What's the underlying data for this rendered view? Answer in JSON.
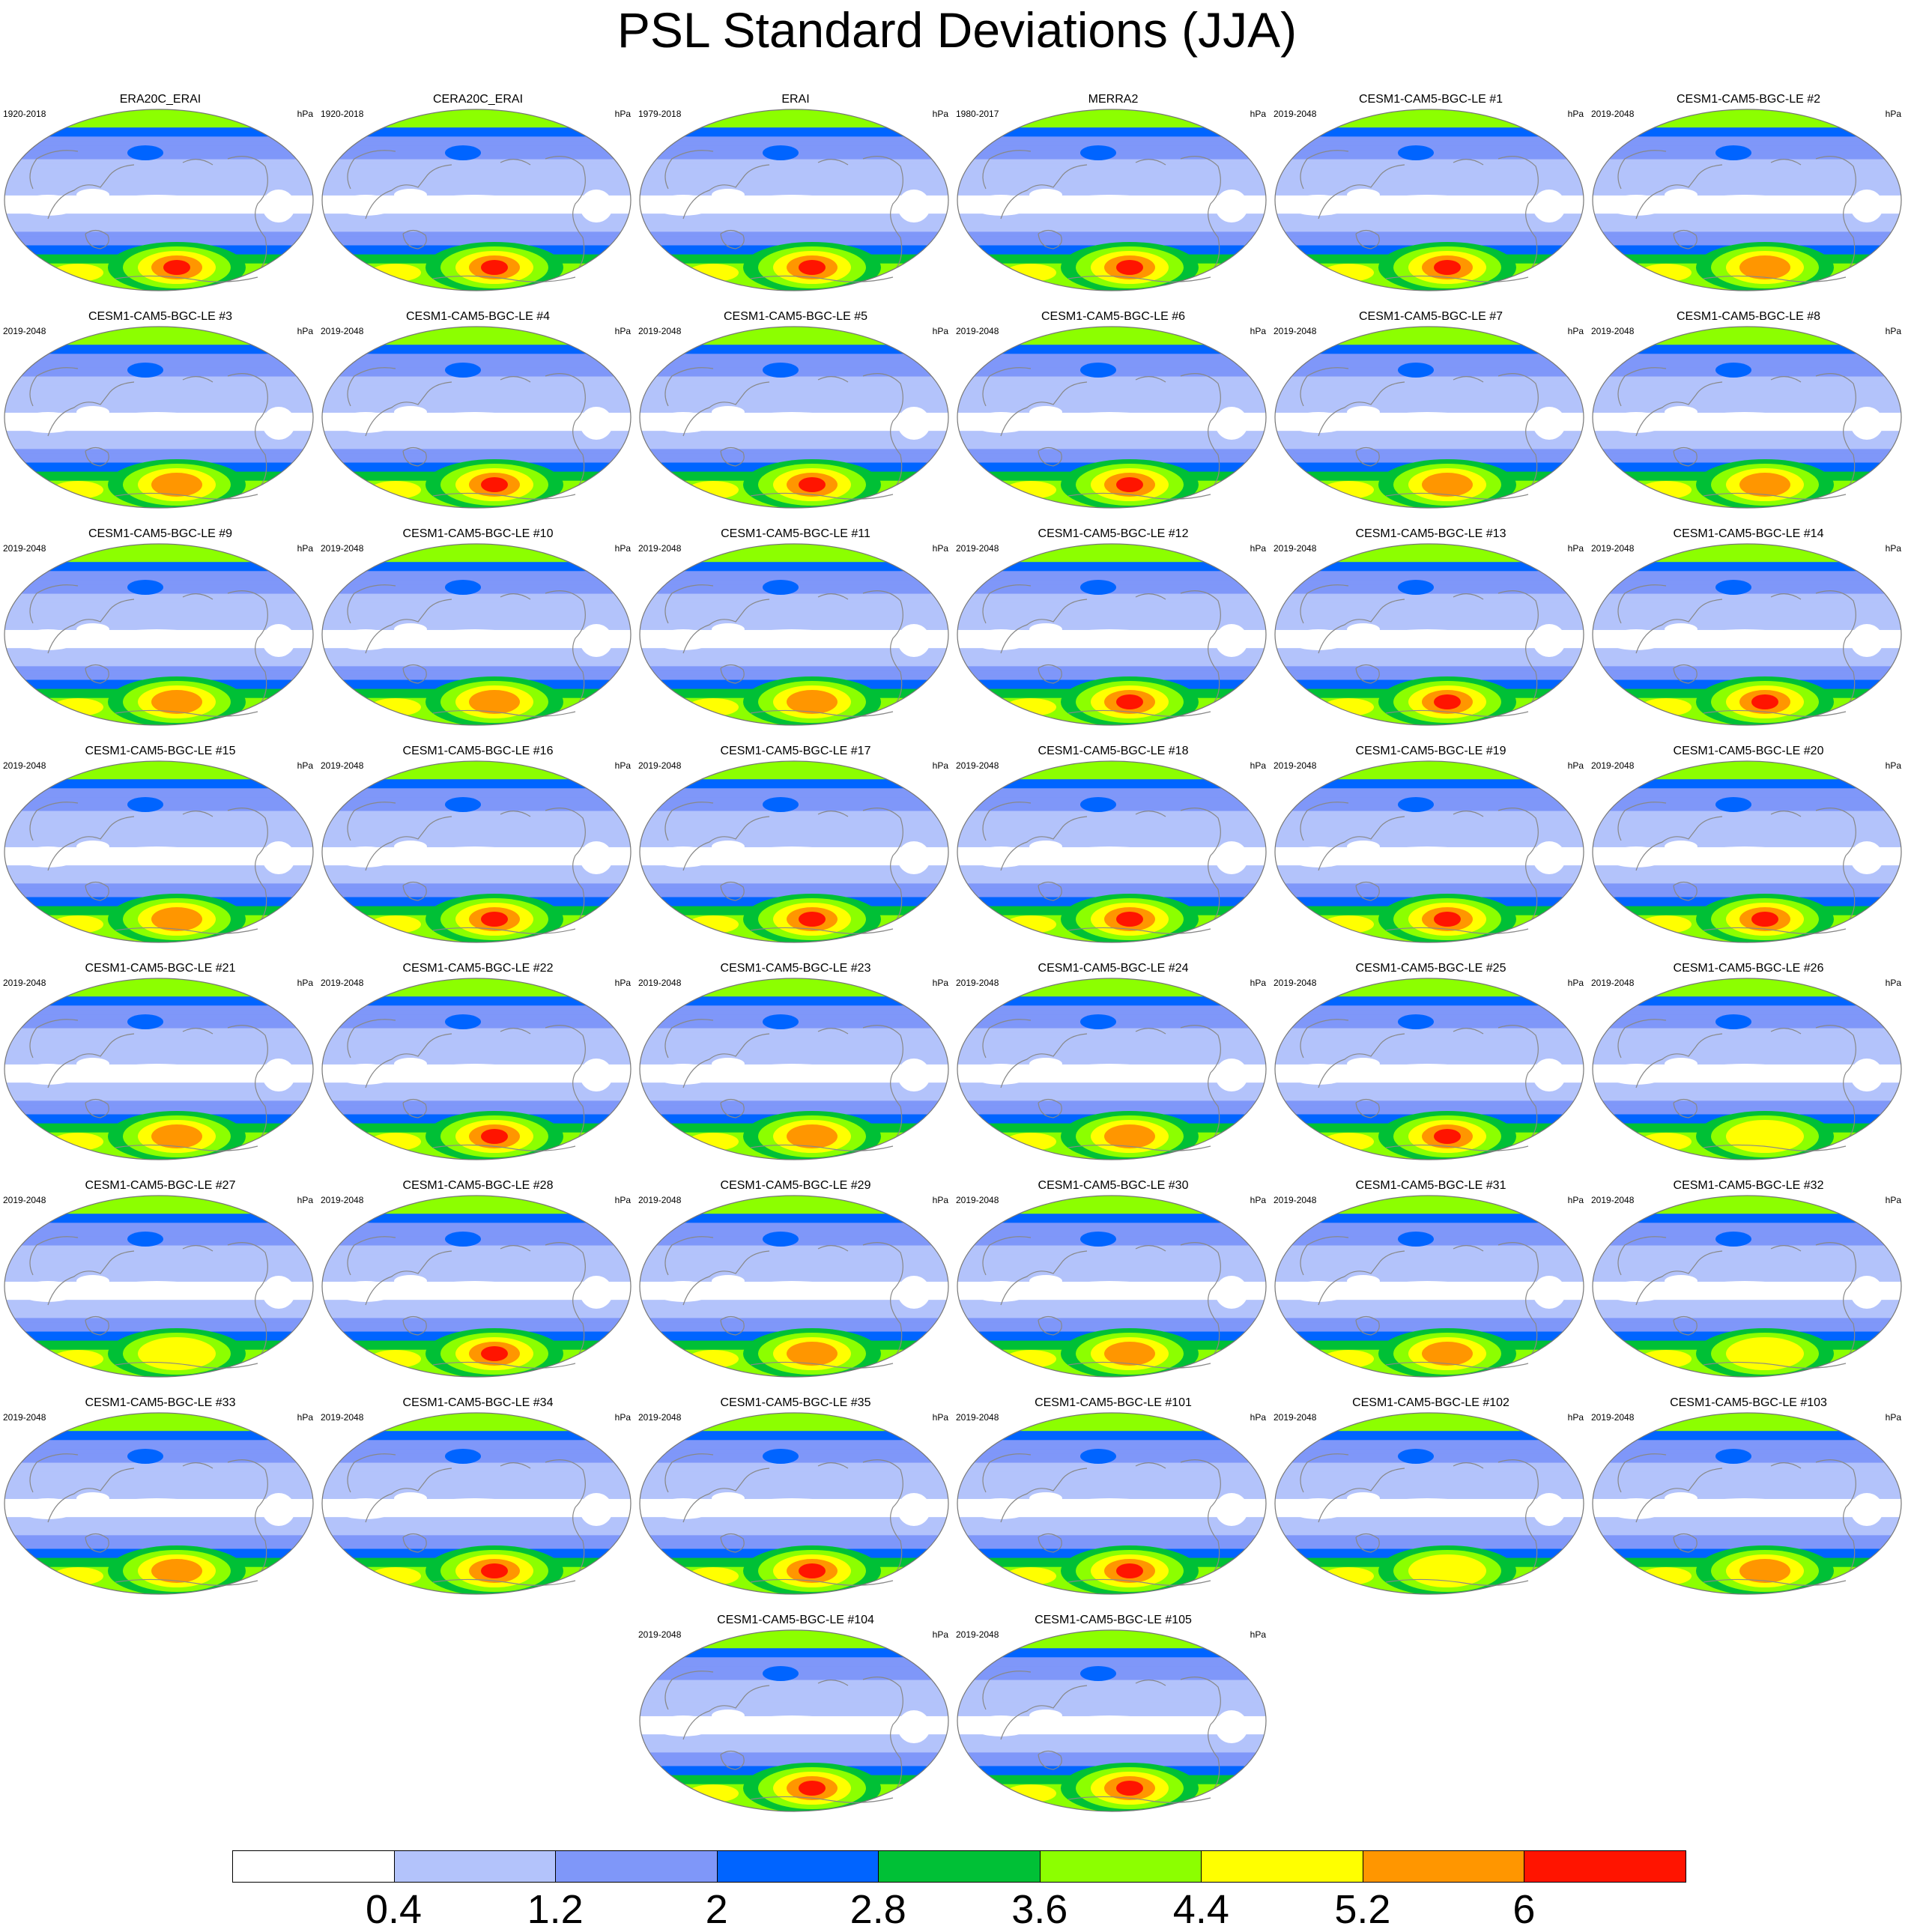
{
  "chart_data": {
    "type": "map-panel-grid",
    "title": "PSL Standard Deviations (JJA)",
    "units": "hPa",
    "colorbar": {
      "levels": [
        0.4,
        1.2,
        2,
        2.8,
        3.6,
        4.4,
        5.2,
        6
      ],
      "labels": [
        "0.4",
        "1.2",
        "2",
        "2.8",
        "3.6",
        "4.4",
        "5.2",
        "6"
      ],
      "colors": [
        "#ffffff",
        "#b3c3fb",
        "#7f97f9",
        "#0064ff",
        "#00c036",
        "#8cff00",
        "#ffff00",
        "#ff9600",
        "#ff1400"
      ]
    },
    "panels": [
      {
        "name": "ERA20C_ERAI",
        "years": "1920-2018",
        "units": "hPa",
        "peak": 6.3
      },
      {
        "name": "CERA20C_ERAI",
        "years": "1920-2018",
        "units": "hPa",
        "peak": 6.1
      },
      {
        "name": "ERAI",
        "years": "1979-2018",
        "units": "hPa",
        "peak": 6.2
      },
      {
        "name": "MERRA2",
        "years": "1980-2017",
        "units": "hPa",
        "peak": 6.2
      },
      {
        "name": "CESM1-CAM5-BGC-LE #1",
        "years": "2019-2048",
        "units": "hPa",
        "peak": 6.4
      },
      {
        "name": "CESM1-CAM5-BGC-LE #2",
        "years": "2019-2048",
        "units": "hPa",
        "peak": 5.3
      },
      {
        "name": "CESM1-CAM5-BGC-LE #3",
        "years": "2019-2048",
        "units": "hPa",
        "peak": 5.8
      },
      {
        "name": "CESM1-CAM5-BGC-LE #4",
        "years": "2019-2048",
        "units": "hPa",
        "peak": 6.4
      },
      {
        "name": "CESM1-CAM5-BGC-LE #5",
        "years": "2019-2048",
        "units": "hPa",
        "peak": 6.5
      },
      {
        "name": "CESM1-CAM5-BGC-LE #6",
        "years": "2019-2048",
        "units": "hPa",
        "peak": 6.2
      },
      {
        "name": "CESM1-CAM5-BGC-LE #7",
        "years": "2019-2048",
        "units": "hPa",
        "peak": 5.6
      },
      {
        "name": "CESM1-CAM5-BGC-LE #8",
        "years": "2019-2048",
        "units": "hPa",
        "peak": 5.7
      },
      {
        "name": "CESM1-CAM5-BGC-LE #9",
        "years": "2019-2048",
        "units": "hPa",
        "peak": 5.6
      },
      {
        "name": "CESM1-CAM5-BGC-LE #10",
        "years": "2019-2048",
        "units": "hPa",
        "peak": 5.5
      },
      {
        "name": "CESM1-CAM5-BGC-LE #11",
        "years": "2019-2048",
        "units": "hPa",
        "peak": 5.6
      },
      {
        "name": "CESM1-CAM5-BGC-LE #12",
        "years": "2019-2048",
        "units": "hPa",
        "peak": 6.5
      },
      {
        "name": "CESM1-CAM5-BGC-LE #13",
        "years": "2019-2048",
        "units": "hPa",
        "peak": 6.1
      },
      {
        "name": "CESM1-CAM5-BGC-LE #14",
        "years": "2019-2048",
        "units": "hPa",
        "peak": 6.1
      },
      {
        "name": "CESM1-CAM5-BGC-LE #15",
        "years": "2019-2048",
        "units": "hPa",
        "peak": 5.5
      },
      {
        "name": "CESM1-CAM5-BGC-LE #16",
        "years": "2019-2048",
        "units": "hPa",
        "peak": 6.5
      },
      {
        "name": "CESM1-CAM5-BGC-LE #17",
        "years": "2019-2048",
        "units": "hPa",
        "peak": 6.3
      },
      {
        "name": "CESM1-CAM5-BGC-LE #18",
        "years": "2019-2048",
        "units": "hPa",
        "peak": 6.3
      },
      {
        "name": "CESM1-CAM5-BGC-LE #19",
        "years": "2019-2048",
        "units": "hPa",
        "peak": 6.2
      },
      {
        "name": "CESM1-CAM5-BGC-LE #20",
        "years": "2019-2048",
        "units": "hPa",
        "peak": 6.2
      },
      {
        "name": "CESM1-CAM5-BGC-LE #21",
        "years": "2019-2048",
        "units": "hPa",
        "peak": 5.6
      },
      {
        "name": "CESM1-CAM5-BGC-LE #22",
        "years": "2019-2048",
        "units": "hPa",
        "peak": 6.5
      },
      {
        "name": "CESM1-CAM5-BGC-LE #23",
        "years": "2019-2048",
        "units": "hPa",
        "peak": 5.6
      },
      {
        "name": "CESM1-CAM5-BGC-LE #24",
        "years": "2019-2048",
        "units": "hPa",
        "peak": 5.8
      },
      {
        "name": "CESM1-CAM5-BGC-LE #25",
        "years": "2019-2048",
        "units": "hPa",
        "peak": 6.6
      },
      {
        "name": "CESM1-CAM5-BGC-LE #26",
        "years": "2019-2048",
        "units": "hPa",
        "peak": 5.0
      },
      {
        "name": "CESM1-CAM5-BGC-LE #27",
        "years": "2019-2048",
        "units": "hPa",
        "peak": 5.0
      },
      {
        "name": "CESM1-CAM5-BGC-LE #28",
        "years": "2019-2048",
        "units": "hPa",
        "peak": 6.3
      },
      {
        "name": "CESM1-CAM5-BGC-LE #29",
        "years": "2019-2048",
        "units": "hPa",
        "peak": 5.6
      },
      {
        "name": "CESM1-CAM5-BGC-LE #30",
        "years": "2019-2048",
        "units": "hPa",
        "peak": 5.5
      },
      {
        "name": "CESM1-CAM5-BGC-LE #31",
        "years": "2019-2048",
        "units": "hPa",
        "peak": 5.7
      },
      {
        "name": "CESM1-CAM5-BGC-LE #32",
        "years": "2019-2048",
        "units": "hPa",
        "peak": 5.1
      },
      {
        "name": "CESM1-CAM5-BGC-LE #33",
        "years": "2019-2048",
        "units": "hPa",
        "peak": 5.4
      },
      {
        "name": "CESM1-CAM5-BGC-LE #34",
        "years": "2019-2048",
        "units": "hPa",
        "peak": 6.5
      },
      {
        "name": "CESM1-CAM5-BGC-LE #35",
        "years": "2019-2048",
        "units": "hPa",
        "peak": 6.2
      },
      {
        "name": "CESM1-CAM5-BGC-LE #101",
        "years": "2019-2048",
        "units": "hPa",
        "peak": 6.4
      },
      {
        "name": "CESM1-CAM5-BGC-LE #102",
        "years": "2019-2048",
        "units": "hPa",
        "peak": 4.9
      },
      {
        "name": "CESM1-CAM5-BGC-LE #103",
        "years": "2019-2048",
        "units": "hPa",
        "peak": 5.6
      },
      {
        "name": "CESM1-CAM5-BGC-LE #104",
        "years": "2019-2048",
        "units": "hPa",
        "peak": 6.2
      },
      {
        "name": "CESM1-CAM5-BGC-LE #105",
        "years": "2019-2048",
        "units": "hPa",
        "peak": 6.2
      }
    ]
  }
}
